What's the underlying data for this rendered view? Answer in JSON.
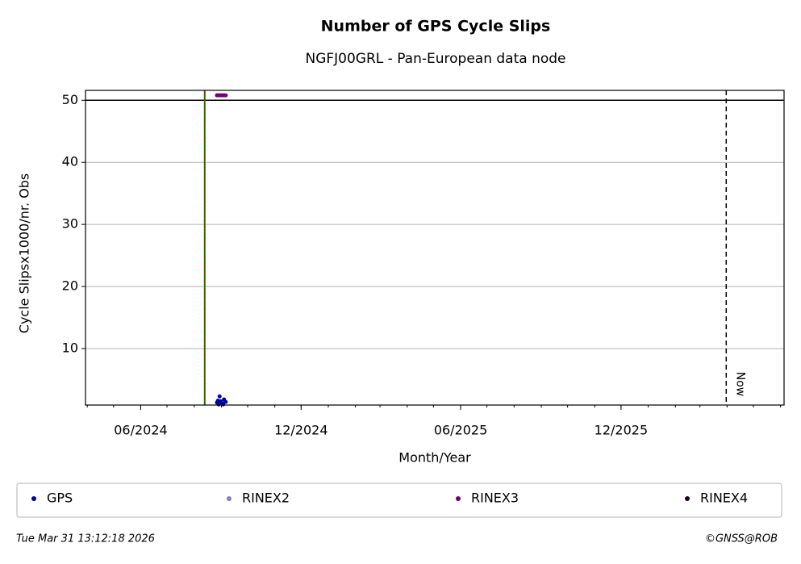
{
  "chart_data": {
    "type": "scatter",
    "title": "Number of GPS Cycle Slips",
    "subtitle": "NGFJ00GRL - Pan-European data node",
    "x_label": "Month/Year",
    "y_label": "Cycle Slipsx1000/nr. Obs",
    "xlim": [
      "2024-03-30",
      "2026-06-05"
    ],
    "xticks": [
      {
        "value": "2024-06-01",
        "label": "06/2024"
      },
      {
        "value": "2024-12-01",
        "label": "12/2024"
      },
      {
        "value": "2025-06-01",
        "label": "06/2025"
      },
      {
        "value": "2025-12-01",
        "label": "12/2025"
      }
    ],
    "ylim": [
      0.9,
      51.6
    ],
    "yticks": [
      10,
      20,
      30,
      40,
      50
    ],
    "grid": true,
    "threshold": 50,
    "marker_line": "2024-08-13",
    "now": {
      "x": "2026-03-31",
      "label": "Now"
    },
    "series": [
      {
        "name": "GPS",
        "color": "#0000a0",
        "x": [
          "2024-08-27",
          "2024-08-28",
          "2024-08-29",
          "2024-08-30",
          "2024-08-31",
          "2024-09-02",
          "2024-09-03",
          "2024-09-04",
          "2024-09-06"
        ],
        "values": [
          1.3,
          1.6,
          1.0,
          2.3,
          1.5,
          1.2,
          1.0,
          1.8,
          1.4
        ]
      },
      {
        "name": "RINEX2",
        "color": "#8080c0",
        "x": [],
        "values": []
      },
      {
        "name": "RINEX3",
        "color": "#700070",
        "x": [
          "2024-08-27",
          "2024-08-29",
          "2024-08-31",
          "2024-09-02",
          "2024-09-04",
          "2024-09-06"
        ],
        "values": [
          50.8,
          50.8,
          50.8,
          50.8,
          50.8,
          50.8
        ]
      },
      {
        "name": "RINEX4",
        "color": "#200020",
        "x": [],
        "values": []
      }
    ],
    "legend": "below",
    "footer_left": "Tue Mar 31 13:12:18 2026",
    "footer_right": "©GNSS@ROB"
  }
}
